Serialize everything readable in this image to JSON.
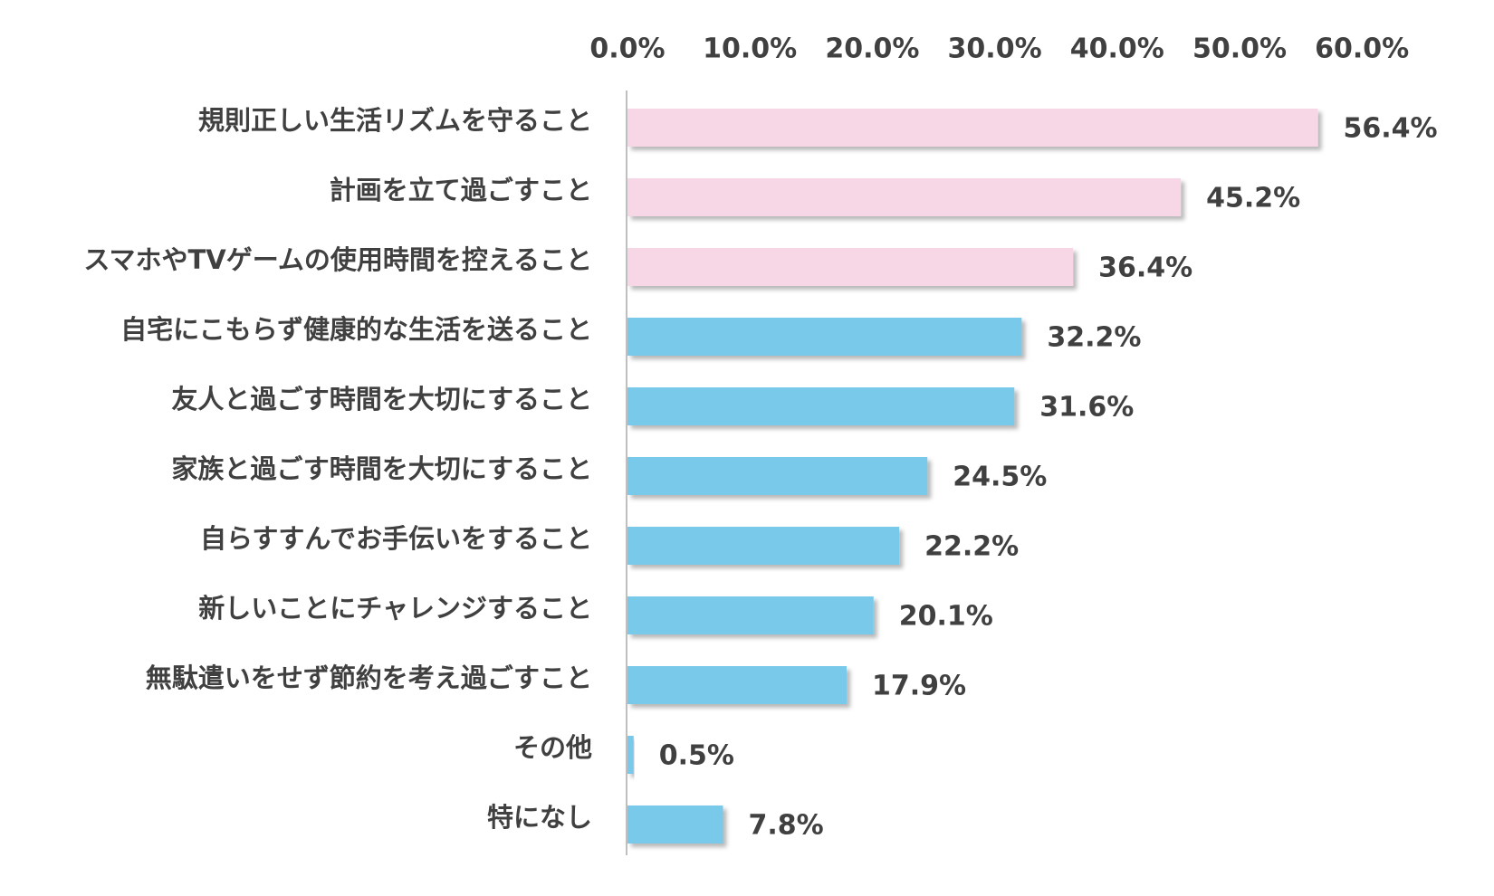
{
  "chart_data": {
    "type": "bar",
    "orientation": "horizontal",
    "xlim": [
      0,
      60
    ],
    "x_ticks": [
      0,
      10,
      20,
      30,
      40,
      50,
      60
    ],
    "x_tick_labels": [
      "0.0%",
      "10.0%",
      "20.0%",
      "30.0%",
      "40.0%",
      "50.0%",
      "60.0%"
    ],
    "x_axis_position": "top",
    "grid": false,
    "categories": [
      "規則正しい生活リズムを守ること",
      "計画を立て過ごすこと",
      "スマホやTVゲームの使用時間を控えること",
      "自宅にこもらず健康的な生活を送ること",
      "友人と過ごす時間を大切にすること",
      "家族と過ごす時間を大切にすること",
      "自らすすんでお手伝いをすること",
      "新しいことにチャレンジすること",
      "無駄遣いをせず節約を考え過ごすこと",
      "その他",
      "特になし"
    ],
    "values": [
      56.4,
      45.2,
      36.4,
      32.2,
      31.6,
      24.5,
      22.2,
      20.1,
      17.9,
      0.5,
      7.8
    ],
    "value_labels": [
      "56.4%",
      "45.2%",
      "36.4%",
      "32.2%",
      "31.6%",
      "24.5%",
      "22.2%",
      "20.1%",
      "17.9%",
      "0.5%",
      "7.8%"
    ],
    "highlighted_count": 3,
    "colors": {
      "highlight": "#f7d7e6",
      "default": "#79c9ea",
      "axis": "#bfbfbf",
      "text": "#404040"
    }
  }
}
